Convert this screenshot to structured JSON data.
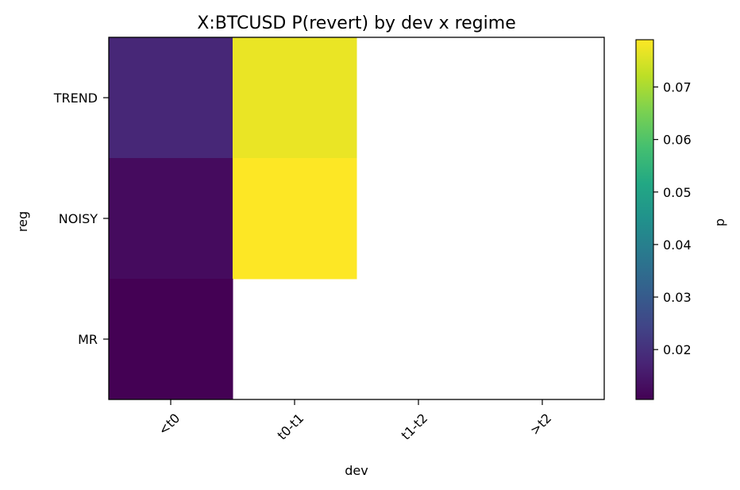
{
  "chart_data": {
    "type": "heatmap",
    "title": "X:BTCUSD P(revert) by dev x regime",
    "xlabel": "dev",
    "ylabel": "reg",
    "x_categories": [
      "<t0",
      "t0-t1",
      "t1-t2",
      ">t2"
    ],
    "y_categories": [
      "TREND",
      "NOISY",
      "MR"
    ],
    "values": [
      [
        0.018,
        0.077,
        null,
        null
      ],
      [
        0.0125,
        0.079,
        null,
        null
      ],
      [
        0.0105,
        null,
        null,
        null
      ]
    ],
    "colorbar": {
      "label": "p",
      "min": 0.0105,
      "max": 0.079,
      "ticks": [
        0.02,
        0.03,
        0.04,
        0.05,
        0.06,
        0.07
      ],
      "colormap": "viridis"
    }
  }
}
